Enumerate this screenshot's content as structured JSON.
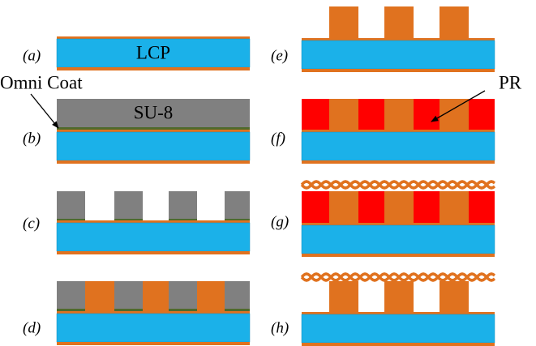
{
  "panels": [
    {
      "label": "(a)"
    },
    {
      "label": "(b)"
    },
    {
      "label": "(c)"
    },
    {
      "label": "(d)"
    },
    {
      "label": "(e)"
    },
    {
      "label": "(f)"
    },
    {
      "label": "(g)"
    },
    {
      "label": "(h)"
    }
  ],
  "annotations": {
    "lcp": "LCP",
    "omni_coat": "Omni Coat",
    "su8": "SU-8",
    "pr": "PR"
  }
}
